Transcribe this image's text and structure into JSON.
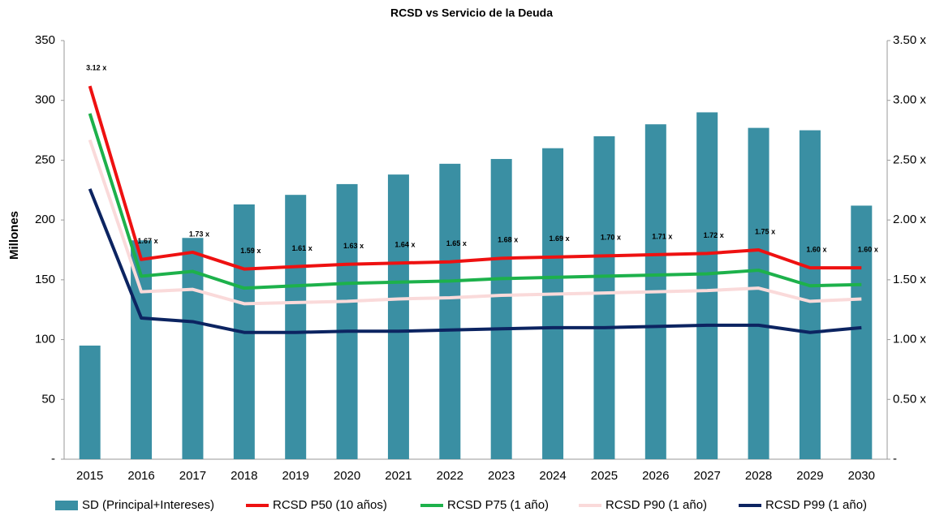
{
  "chart_data": {
    "type": "bar-line",
    "title": "RCSD vs Servicio de la Deuda",
    "y_label": "Millones",
    "categories": [
      "2015",
      "2016",
      "2017",
      "2018",
      "2019",
      "2020",
      "2021",
      "2022",
      "2023",
      "2024",
      "2025",
      "2026",
      "2027",
      "2028",
      "2029",
      "2030"
    ],
    "ylim": [
      0,
      350
    ],
    "yticks": [
      {
        "value": 0,
        "label": "-"
      },
      50,
      100,
      150,
      200,
      250,
      300,
      350
    ],
    "y2lim": [
      0,
      3.5
    ],
    "y2ticks": [
      {
        "value": 0,
        "label": "-"
      },
      {
        "value": 0.5,
        "label": "0.50 x"
      },
      {
        "value": 1,
        "label": "1.00 x"
      },
      {
        "value": 1.5,
        "label": "1.50 x"
      },
      {
        "value": 2,
        "label": "2.00 x"
      },
      {
        "value": 2.5,
        "label": "2.50 x"
      },
      {
        "value": 3,
        "label": "3.00 x"
      },
      {
        "value": 3.5,
        "label": "3.50 x"
      }
    ],
    "series": [
      {
        "name": "SD (Principal+Intereses)",
        "type": "bar",
        "color": "#3a8fa3",
        "values": [
          95,
          183,
          185,
          213,
          221,
          230,
          238,
          247,
          251,
          260,
          270,
          280,
          290,
          277,
          275,
          212
        ]
      },
      {
        "name": "RCSD P50 (10 años)",
        "type": "line",
        "axis": "y2",
        "color": "#ee1111",
        "values": [
          3.12,
          1.67,
          1.73,
          1.59,
          1.61,
          1.63,
          1.64,
          1.65,
          1.68,
          1.69,
          1.7,
          1.71,
          1.72,
          1.75,
          1.6,
          1.6
        ],
        "value_labels": [
          "3.12 x",
          "1.67 x",
          "1.73 x",
          "1.59 x",
          "1.61 x",
          "1.63 x",
          "1.64 x",
          "1.65 x",
          "1.68 x",
          "1.69 x",
          "1.70 x",
          "1.71 x",
          "1.72 x",
          "1.75 x",
          "1.60 x",
          "1.60 x"
        ]
      },
      {
        "name": "RCSD P75 (1 año)",
        "type": "line",
        "axis": "y2",
        "color": "#1db14b",
        "values": [
          2.89,
          1.53,
          1.57,
          1.43,
          1.45,
          1.47,
          1.48,
          1.49,
          1.51,
          1.52,
          1.53,
          1.54,
          1.55,
          1.58,
          1.45,
          1.46
        ]
      },
      {
        "name": "RCSD P90 (1 año)",
        "type": "line",
        "axis": "y2",
        "color": "#fadada",
        "values": [
          2.67,
          1.4,
          1.42,
          1.3,
          1.31,
          1.32,
          1.34,
          1.35,
          1.37,
          1.38,
          1.39,
          1.4,
          1.41,
          1.43,
          1.32,
          1.34
        ]
      },
      {
        "name": "RCSD P99 (1 año)",
        "type": "line",
        "axis": "y2",
        "color": "#0c2461",
        "values": [
          2.26,
          1.18,
          1.15,
          1.06,
          1.06,
          1.07,
          1.07,
          1.08,
          1.09,
          1.1,
          1.1,
          1.11,
          1.12,
          1.12,
          1.06,
          1.1
        ]
      }
    ]
  }
}
